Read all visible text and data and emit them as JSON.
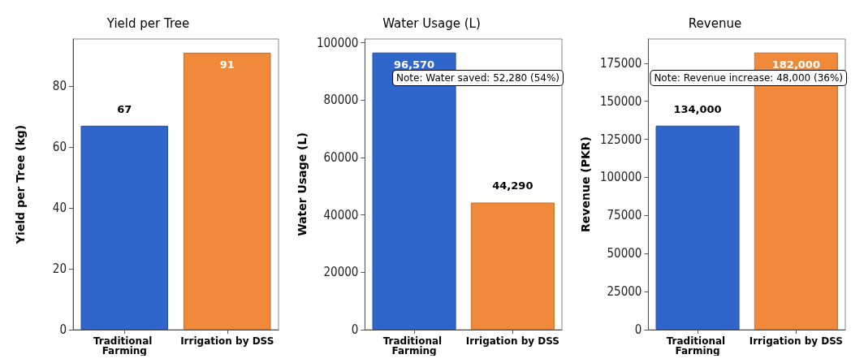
{
  "chart_data": [
    {
      "type": "bar",
      "title": "Yield per Tree",
      "ylabel": "Yield per Tree (kg)",
      "categories": [
        "Traditional Farming",
        "Irrigation by DSS"
      ],
      "values": [
        67,
        91
      ],
      "value_labels": [
        "67",
        "91"
      ],
      "colors": [
        "#3066cc",
        "#f08a3a"
      ],
      "ylim": [
        0,
        95.5
      ],
      "yticks": [
        0,
        20,
        40,
        60,
        80
      ],
      "grid": false
    },
    {
      "type": "bar",
      "title": "Water Usage (L)",
      "ylabel": "Water Usage (L)",
      "categories": [
        "Traditional Farming",
        "Irrigation by DSS"
      ],
      "values": [
        96570,
        44290
      ],
      "value_labels": [
        "96,570",
        "44,290"
      ],
      "colors": [
        "#3066cc",
        "#f08a3a"
      ],
      "ylim": [
        0,
        101300
      ],
      "yticks": [
        0,
        20000,
        40000,
        60000,
        80000,
        100000
      ],
      "grid": false,
      "annotations": [
        "Note: Water saved: 52,280 (54%)"
      ]
    },
    {
      "type": "bar",
      "title": "Revenue",
      "ylabel": "Revenue (PKR)",
      "categories": [
        "Traditional Farming",
        "Irrigation by DSS"
      ],
      "values": [
        134000,
        182000
      ],
      "value_labels": [
        "134,000",
        "182,000"
      ],
      "colors": [
        "#3066cc",
        "#f08a3a"
      ],
      "ylim": [
        0,
        190900
      ],
      "yticks": [
        0,
        25000,
        50000,
        75000,
        100000,
        125000,
        150000,
        175000
      ],
      "grid": false,
      "annotations": [
        "Note: Revenue increase: 48,000 (36%)"
      ]
    }
  ]
}
